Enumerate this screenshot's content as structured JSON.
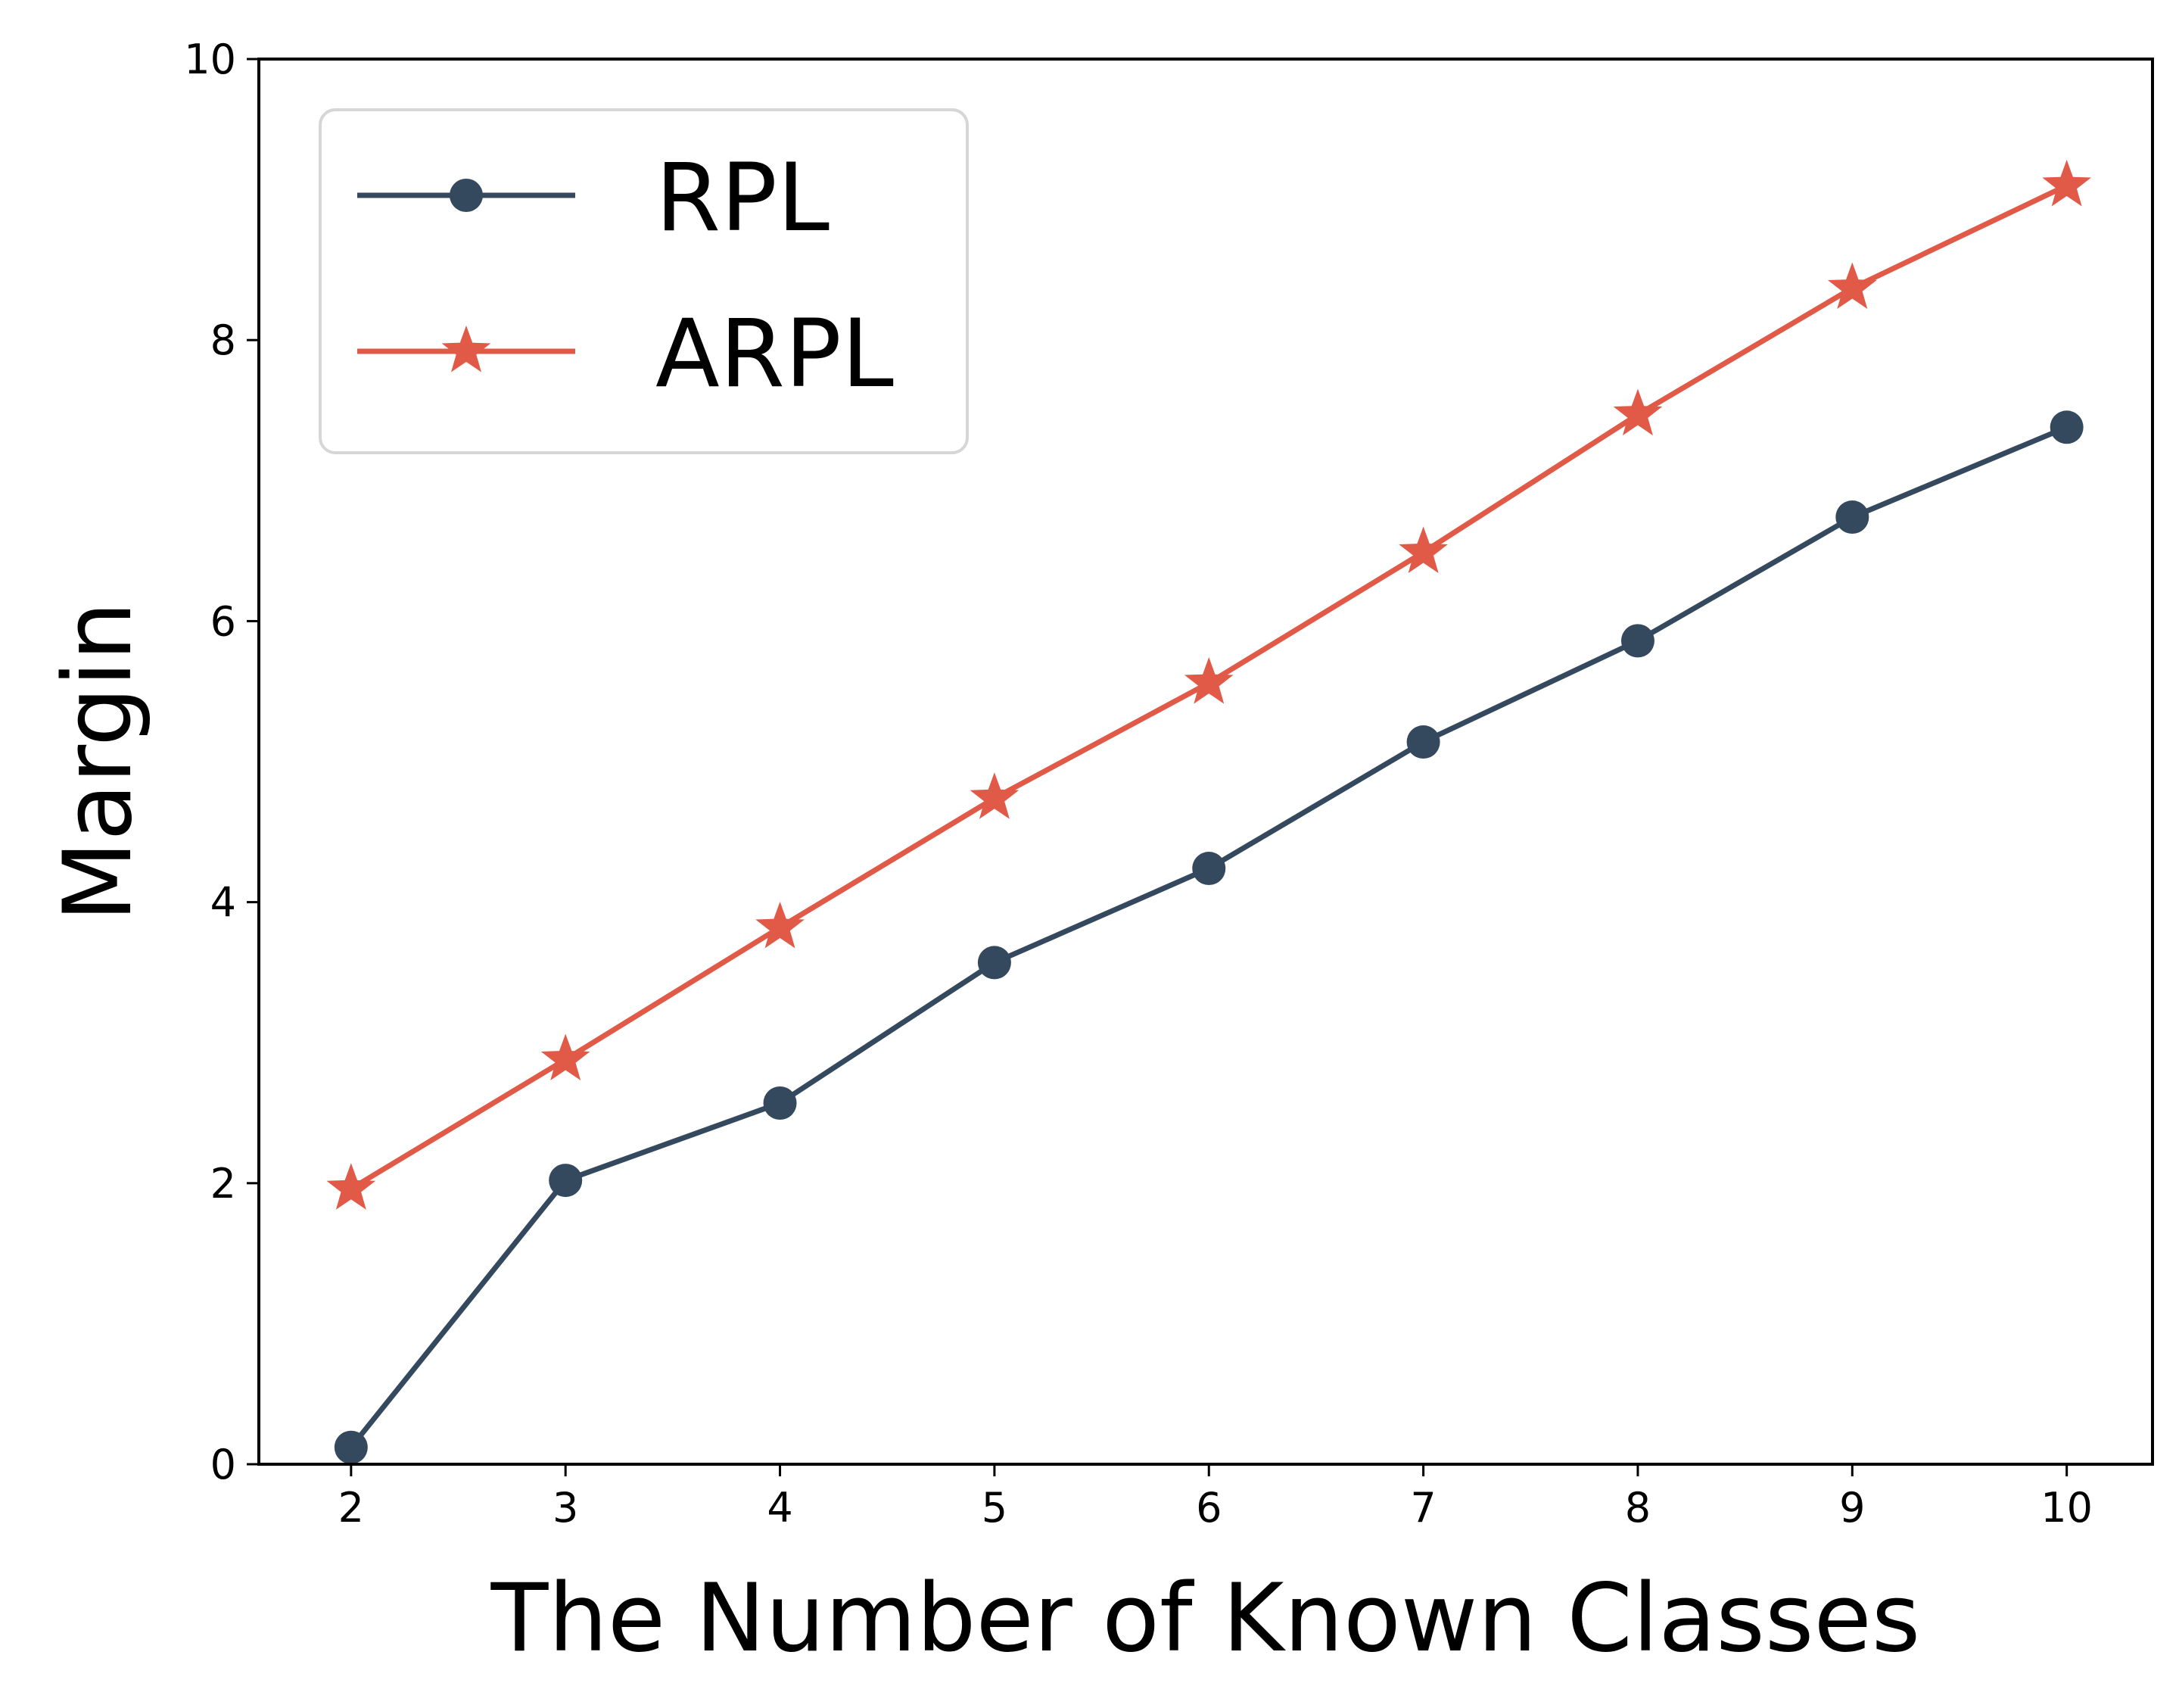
{
  "chart_data": {
    "type": "line",
    "title": "",
    "xlabel": "The Number of Known Classes",
    "ylabel": "Margin",
    "x": [
      2,
      3,
      4,
      5,
      6,
      7,
      8,
      9,
      10
    ],
    "xlim": [
      1.57,
      10.4
    ],
    "ylim": [
      0,
      10
    ],
    "xticks": [
      "2",
      "3",
      "4",
      "5",
      "6",
      "7",
      "8",
      "9",
      "10"
    ],
    "yticks": [
      "0",
      "2",
      "4",
      "6",
      "8",
      "10"
    ],
    "grid": false,
    "legend_position": "top-left",
    "series": [
      {
        "name": "RPL",
        "marker": "circle",
        "color": "#34495e",
        "values": [
          0.12,
          2.02,
          2.57,
          3.57,
          4.24,
          5.14,
          5.86,
          6.74,
          7.38
        ]
      },
      {
        "name": "ARPL",
        "marker": "star",
        "color": "#e05a47",
        "values": [
          1.96,
          2.88,
          3.82,
          4.74,
          5.56,
          6.49,
          7.47,
          8.37,
          9.1
        ]
      }
    ]
  }
}
